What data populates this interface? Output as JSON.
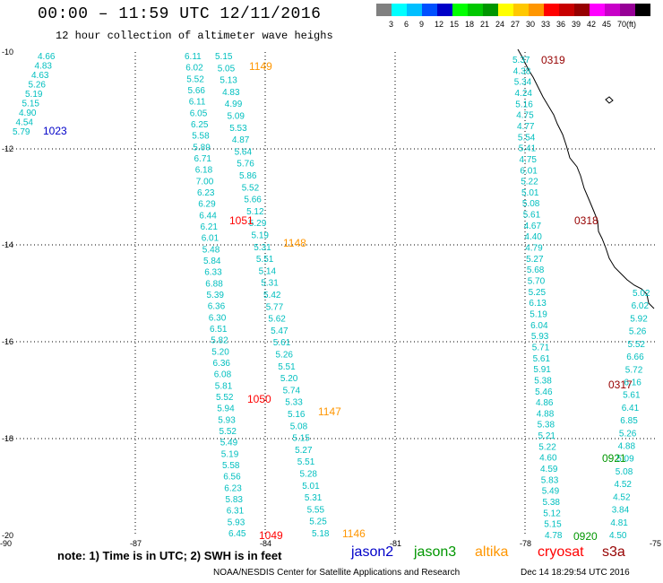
{
  "header": {
    "title": "00:00 – 11:59 UTC 12/11/2016",
    "subtitle": "12 hour collection of altimeter wave heighs"
  },
  "scale": {
    "unit": "(ft)",
    "colors": [
      "#808080",
      "#00ffff",
      "#00bfff",
      "#0050ff",
      "#0000c8",
      "#00ff00",
      "#00c800",
      "#009600",
      "#ffff00",
      "#ffc800",
      "#ff9600",
      "#ff0000",
      "#c80000",
      "#960000",
      "#ff00ff",
      "#c800c8",
      "#960096",
      "#000000"
    ],
    "labels": [
      "3",
      "6",
      "9",
      "12",
      "15",
      "18",
      "21",
      "24",
      "27",
      "30",
      "33",
      "36",
      "39",
      "42",
      "45",
      "70"
    ]
  },
  "axes": {
    "lat_labels": [
      "-10",
      "-12",
      "-14",
      "-16",
      "-18",
      "-20"
    ],
    "lon_labels": [
      "-90",
      "-87",
      "-84",
      "-81",
      "-78",
      "-75"
    ]
  },
  "passes": {
    "p1023": {
      "label": "1023",
      "color": "#0000c8",
      "values": [
        "4.66",
        "4.83",
        "4.63",
        "5.26",
        "5.19",
        "5.15",
        "4.90",
        "4.54",
        "5.79"
      ]
    },
    "p1149": {
      "label": "1149",
      "color": "#ff9600",
      "values": [
        "5.15",
        "5.05",
        "5.13",
        "4.83",
        "4.99",
        "5.09",
        "5.53",
        "4.87",
        "5.64",
        "5.76",
        "5.86",
        "5.52",
        "5.66",
        "5.12",
        "5.29",
        "5.19",
        "5.31",
        "5.51",
        "5.14",
        "5.31",
        "5.42",
        "5.77",
        "5.62",
        "5.47",
        "5.61",
        "5.26",
        "5.51",
        "5.20",
        "5.74",
        "5.33",
        "5.16",
        "5.08",
        "5.15",
        "5.27",
        "5.51",
        "5.28",
        "5.01",
        "5.31",
        "5.55",
        "5.25",
        "5.18"
      ]
    },
    "p1051": {
      "label": "1051",
      "color": "#ff0000",
      "values": [
        "6.11",
        "6.02",
        "5.52",
        "5.66",
        "6.11",
        "6.05",
        "6.25",
        "5.58",
        "5.89",
        "6.71",
        "6.18",
        "7.00",
        "6.23",
        "6.29",
        "6.44",
        "6.21",
        "6.01",
        "5.48",
        "5.84",
        "6.33",
        "6.88",
        "5.39",
        "6.36",
        "6.30",
        "6.51",
        "5.82",
        "5.20",
        "6.36",
        "6.08",
        "5.81",
        "5.52",
        "5.94",
        "5.93",
        "5.52",
        "5.49",
        "5.19",
        "5.58",
        "6.56",
        "6.23",
        "5.83",
        "6.31",
        "5.93",
        "6.45"
      ]
    },
    "p1148": {
      "label": "1148",
      "color": "#ff9600"
    },
    "p1050": {
      "label": "1050",
      "color": "#ff0000"
    },
    "p1147": {
      "label": "1147",
      "color": "#ff9600"
    },
    "p1049": {
      "label": "1049",
      "color": "#ff0000"
    },
    "p1146": {
      "label": "1146",
      "color": "#ff9600"
    },
    "p0319": {
      "label": "0319",
      "color": "#960000",
      "values": [
        "5.37",
        "4.38",
        "5.34",
        "4.24",
        "5.16",
        "4.75",
        "4.77",
        "5.54",
        "5.41",
        "4.75",
        "6.01",
        "5.22",
        "5.01",
        "5.08",
        "5.61",
        "4.67",
        "4.40",
        "4.79",
        "5.27",
        "5.68",
        "5.70",
        "5.25",
        "6.13",
        "5.19",
        "6.04",
        "5.93",
        "5.71",
        "5.61",
        "5.91",
        "5.38",
        "5.46",
        "4.86",
        "4.88",
        "5.38",
        "5.21",
        "5.22",
        "4.60",
        "4.59",
        "5.83",
        "5.49",
        "5.38",
        "5.12",
        "5.15",
        "4.78"
      ]
    },
    "p0318": {
      "label": "0318",
      "color": "#960000"
    },
    "p0317": {
      "label": "0317",
      "color": "#960000",
      "values": [
        "5.02",
        "6.02",
        "5.92",
        "5.26",
        "5.52",
        "6.66",
        "5.72",
        "6.16",
        "5.61",
        "6.41",
        "6.85",
        "5.26",
        "4.88",
        "5.09",
        "5.08",
        "4.52",
        "4.52",
        "3.84",
        "4.81",
        "4.50"
      ]
    },
    "p0921": {
      "label": "0921",
      "color": "#009600"
    },
    "p0920": {
      "label": "0920",
      "color": "#009600"
    }
  },
  "footer": {
    "note": "note: 1) Time is in UTC; 2) SWH is in feet",
    "sat_jason2": "jason2",
    "sat_jason3": "jason3",
    "sat_altika": "altika",
    "sat_cryosat": "cryosat",
    "sat_s3a": "s3a",
    "credit": "NOAA/NESDIS Center for Satellite Applications and Research",
    "timestamp": "Dec 14 18:29:54 UTC 2016"
  }
}
